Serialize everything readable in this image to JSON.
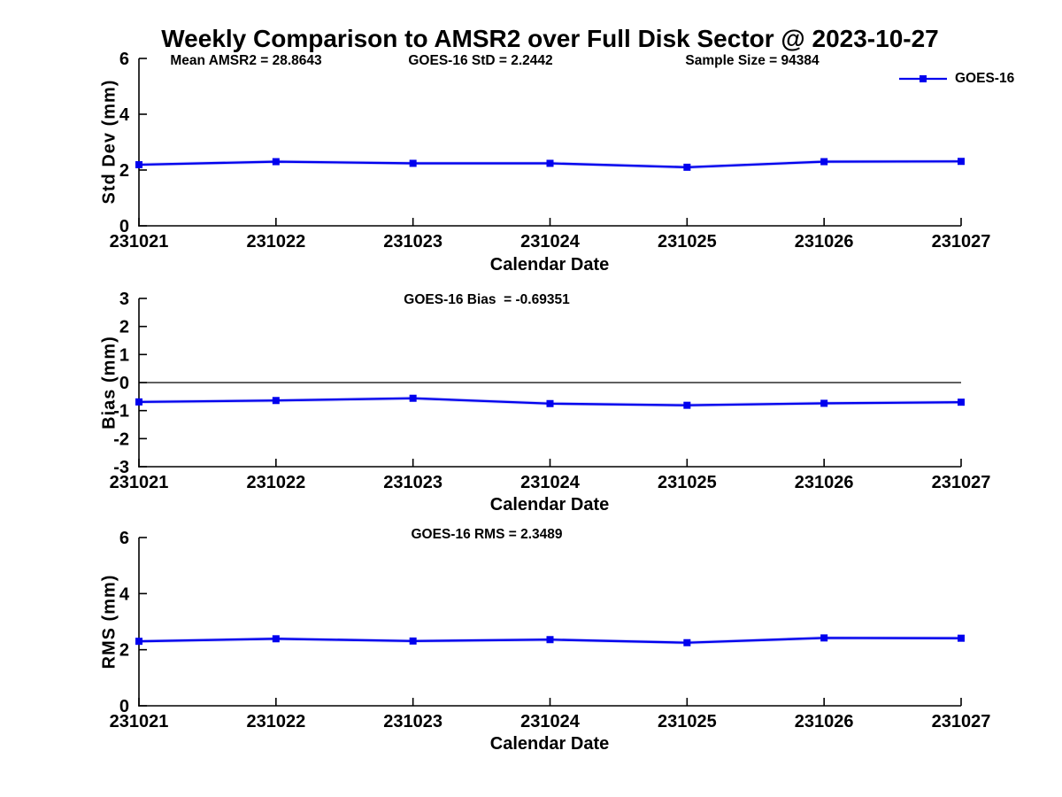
{
  "figure": {
    "title": "Weekly Comparison to AMSR2 over Full Disk Sector @ 2023-10-27"
  },
  "chart_data": [
    {
      "type": "line",
      "title": "",
      "annotations": [
        "Mean AMSR2 = 28.8643",
        "GOES-16 StD = 2.2442",
        "Sample Size = 94384"
      ],
      "xlabel": "Calendar Date",
      "ylabel": "Std Dev (mm)",
      "categories": [
        "231021",
        "231022",
        "231023",
        "231024",
        "231025",
        "231026",
        "231027"
      ],
      "series": [
        {
          "name": "GOES-16",
          "color": "#0000ee",
          "marker": "square",
          "values": [
            2.19,
            2.3,
            2.24,
            2.24,
            2.1,
            2.3,
            2.31
          ]
        }
      ],
      "ylim": [
        0,
        6
      ],
      "yticks": [
        0,
        2,
        4,
        6
      ],
      "grid": false,
      "zero_line": false,
      "legend_position": "top-right"
    },
    {
      "type": "line",
      "title": "GOES-16 Bias  = -0.69351",
      "xlabel": "Calendar Date",
      "ylabel": "Bias (mm)",
      "categories": [
        "231021",
        "231022",
        "231023",
        "231024",
        "231025",
        "231026",
        "231027"
      ],
      "series": [
        {
          "name": "GOES-16",
          "color": "#0000ee",
          "marker": "square",
          "values": [
            -0.69,
            -0.64,
            -0.56,
            -0.75,
            -0.81,
            -0.74,
            -0.7
          ]
        }
      ],
      "ylim": [
        -3,
        3
      ],
      "yticks": [
        -3,
        -2,
        -1,
        0,
        1,
        2,
        3
      ],
      "grid": false,
      "zero_line": true,
      "legend_position": "none"
    },
    {
      "type": "line",
      "title": "GOES-16 RMS = 2.3489",
      "xlabel": "Calendar Date",
      "ylabel": "RMS (mm)",
      "categories": [
        "231021",
        "231022",
        "231023",
        "231024",
        "231025",
        "231026",
        "231027"
      ],
      "series": [
        {
          "name": "GOES-16",
          "color": "#0000ee",
          "marker": "square",
          "values": [
            2.3,
            2.39,
            2.31,
            2.36,
            2.25,
            2.42,
            2.41
          ]
        }
      ],
      "ylim": [
        0,
        6
      ],
      "yticks": [
        0,
        2,
        4,
        6
      ],
      "grid": false,
      "zero_line": false,
      "legend_position": "none"
    }
  ]
}
